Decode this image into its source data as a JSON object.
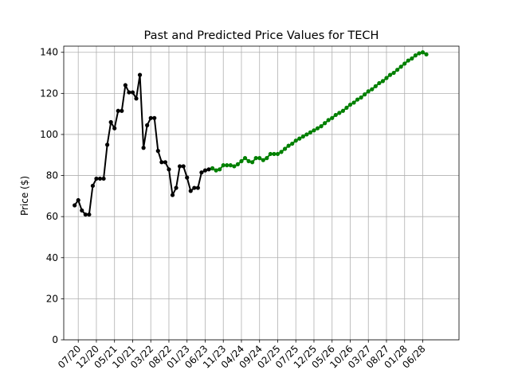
{
  "chart_data": {
    "type": "line",
    "title": "Past and Predicted Price Values for TECH",
    "xlabel": "",
    "ylabel": "Price ($)",
    "ylim": [
      0,
      143
    ],
    "yticks": [
      0,
      20,
      40,
      60,
      80,
      100,
      120,
      140
    ],
    "grid": true,
    "x_tick_labels": [
      "07/20",
      "12/20",
      "05/21",
      "10/21",
      "03/22",
      "08/22",
      "01/23",
      "06/23",
      "11/23",
      "04/24",
      "09/24",
      "02/25",
      "07/25",
      "12/25",
      "05/26",
      "10/26",
      "03/27",
      "08/27",
      "01/28",
      "06/28"
    ],
    "x_axis_note": "x values are month indices counted from 07/20 (07/20 = 0, one step per month)",
    "xlim": [
      -4,
      105
    ],
    "series": [
      {
        "color": "#000000",
        "x": [
          -1,
          0,
          1,
          2,
          3,
          4,
          5,
          6,
          7,
          8,
          9,
          10,
          11,
          12,
          13,
          14,
          15,
          16,
          17,
          18,
          19,
          20,
          21,
          22,
          23,
          24,
          25,
          26,
          27,
          28,
          29,
          30,
          31,
          32,
          33,
          34,
          35,
          36,
          37
        ],
        "y": [
          65.5,
          68.0,
          63.0,
          61.0,
          61.0,
          75.0,
          78.5,
          78.5,
          78.5,
          95.0,
          106.0,
          103.0,
          111.5,
          111.5,
          124.0,
          120.5,
          120.5,
          117.5,
          129.0,
          93.5,
          104.5,
          108.0,
          108.0,
          92.0,
          86.5,
          86.5,
          83.0,
          70.5,
          74.0,
          84.5,
          84.5,
          79.0,
          72.5,
          74.0,
          74.0,
          81.5,
          82.5,
          83.0,
          83.5
        ]
      },
      {
        "color": "#008000",
        "x": [
          37,
          38,
          39,
          40,
          41,
          42,
          43,
          44,
          45,
          46,
          47,
          48,
          49,
          50,
          51,
          52,
          53,
          54,
          55,
          56,
          57,
          58,
          59,
          60,
          61,
          62,
          63,
          64,
          65,
          66,
          67,
          68,
          69,
          70,
          71,
          72,
          73,
          74,
          75,
          76,
          77,
          78,
          79,
          80,
          81,
          82,
          83,
          84,
          85,
          86,
          87,
          88,
          89,
          90,
          91,
          92,
          93,
          94,
          95,
          96
        ],
        "y": [
          83.5,
          82.5,
          83.0,
          85.0,
          85.0,
          85.0,
          84.5,
          85.5,
          87.0,
          88.5,
          87.0,
          86.5,
          88.5,
          88.5,
          87.5,
          88.5,
          90.5,
          90.5,
          90.5,
          91.5,
          93.0,
          94.5,
          95.5,
          97.0,
          98.0,
          99.0,
          100.0,
          101.0,
          102.0,
          103.0,
          104.0,
          105.5,
          107.0,
          108.0,
          109.5,
          110.5,
          111.5,
          113.0,
          114.5,
          115.5,
          117.0,
          118.0,
          119.5,
          121.0,
          122.0,
          123.5,
          125.0,
          126.0,
          127.5,
          129.0,
          130.0,
          131.5,
          133.0,
          134.5,
          136.0,
          137.0,
          138.5,
          139.5,
          140.0,
          139.0
        ]
      }
    ]
  }
}
